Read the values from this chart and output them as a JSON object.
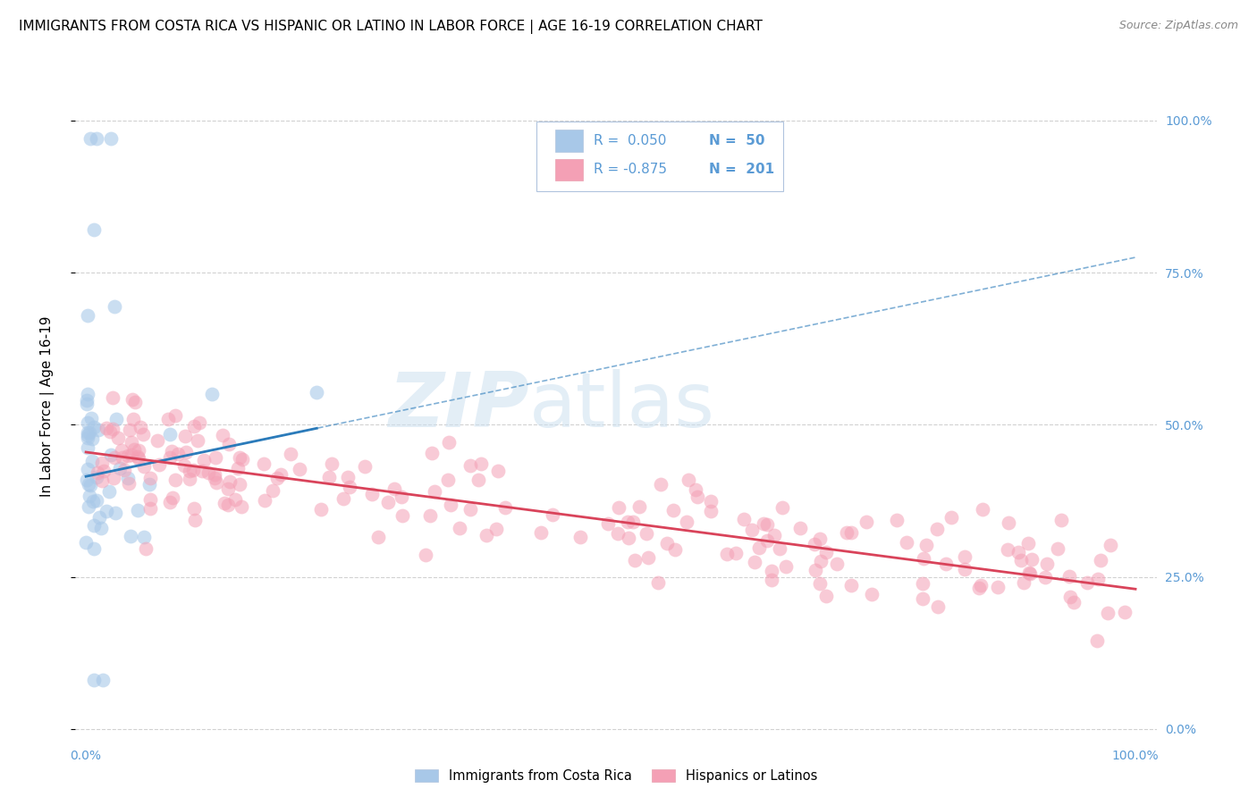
{
  "title": "IMMIGRANTS FROM COSTA RICA VS HISPANIC OR LATINO IN LABOR FORCE | AGE 16-19 CORRELATION CHART",
  "source": "Source: ZipAtlas.com",
  "ylabel": "In Labor Force | Age 16-19",
  "ytick_labels": [
    "0.0%",
    "25.0%",
    "50.0%",
    "75.0%",
    "100.0%"
  ],
  "ytick_values": [
    0.0,
    0.25,
    0.5,
    0.75,
    1.0
  ],
  "xlim": [
    -0.01,
    1.02
  ],
  "ylim": [
    -0.02,
    1.08
  ],
  "watermark_zip": "ZIP",
  "watermark_atlas": "atlas",
  "blue_scatter_color": "#a8c8e8",
  "pink_scatter_color": "#f4a0b5",
  "blue_line_color": "#2b7bba",
  "pink_line_color": "#d9435a",
  "blue_r": 0.05,
  "blue_n": 50,
  "pink_r": -0.875,
  "pink_n": 201,
  "blue_intercept": 0.415,
  "blue_slope": 0.36,
  "pink_intercept": 0.455,
  "pink_slope": -0.225,
  "background_color": "#ffffff",
  "grid_color": "#cccccc",
  "title_fontsize": 11,
  "source_fontsize": 9,
  "axis_label_fontsize": 11,
  "tick_fontsize": 10,
  "right_tick_color": "#5b9bd5",
  "legend_text_color": "#5b9bd5",
  "legend_border_color": "#b0c4de",
  "seed": 42
}
